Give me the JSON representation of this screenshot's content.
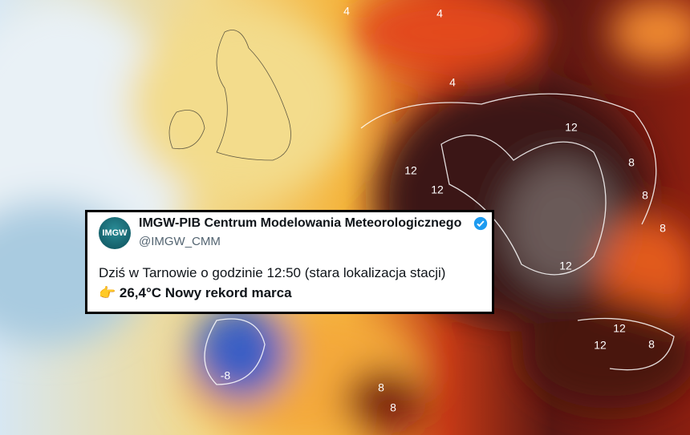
{
  "map": {
    "contour_labels": [
      "4",
      "4",
      "4",
      "12",
      "12",
      "12",
      "8",
      "8",
      "8",
      "12",
      "12",
      "12",
      "8",
      "-8",
      "8",
      "8"
    ]
  },
  "tweet": {
    "avatar_text": "IMGW",
    "author": "IMGW-PIB Centrum Modelowania Meteorologicznego",
    "handle": "@IMGW_CMM",
    "text_line_1": "Dziś w Tarnowie o godzinie 12:50 (stara lokalizacja stacji)",
    "text_line_2": "👉 26,4°C Nowy rekord marca"
  }
}
